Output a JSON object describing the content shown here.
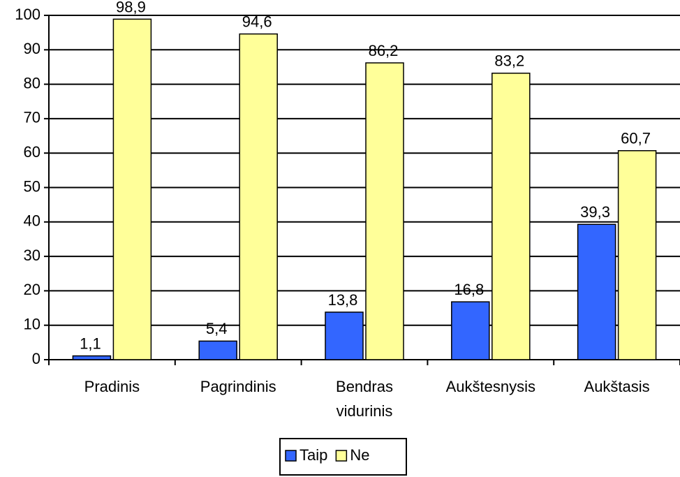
{
  "chart_data": {
    "type": "bar",
    "categories": [
      "Pradinis",
      "Pagrindinis",
      "Bendras vidurinis",
      "Aukštesnysis",
      "Aukštasis"
    ],
    "series": [
      {
        "name": "Taip",
        "color": "#3366ff",
        "values": [
          1.1,
          5.4,
          13.8,
          16.8,
          39.3
        ],
        "value_labels": [
          "1,1",
          "5,4",
          "13,8",
          "16,8",
          "39,3"
        ]
      },
      {
        "name": "Ne",
        "color": "#ffff99",
        "values": [
          98.9,
          94.6,
          86.2,
          83.2,
          60.7
        ],
        "value_labels": [
          "98,9",
          "94,6",
          "86,2",
          "83,2",
          "60,7"
        ]
      }
    ],
    "ylim": [
      0,
      100
    ],
    "yticks": [
      0,
      10,
      20,
      30,
      40,
      50,
      60,
      70,
      80,
      90,
      100
    ],
    "grid": true,
    "legend": "bottom"
  }
}
